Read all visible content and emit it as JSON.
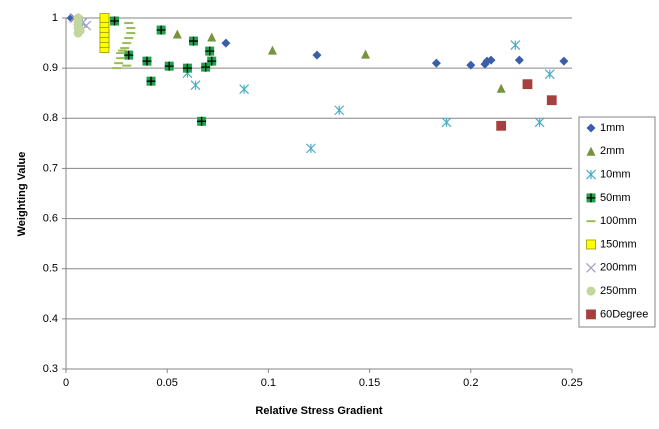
{
  "chart_data": {
    "type": "scatter",
    "x_label": "Relative Stress Gradient",
    "y_label": "Weighting Value",
    "xlim": [
      0,
      0.25
    ],
    "xticks": [
      0,
      0.05,
      0.1,
      0.15,
      0.2,
      0.25
    ],
    "ylim": [
      0.3,
      1
    ],
    "yticks": [
      0.3,
      0.4,
      0.5,
      0.6,
      0.7,
      0.8,
      0.9,
      1
    ],
    "grid": true,
    "legend": "right",
    "series": [
      {
        "name": "1mm",
        "color": "#3a5ea8",
        "marker": "diamond",
        "x": [
          0.0025,
          0.079,
          0.124,
          0.183,
          0.2,
          0.207,
          0.208,
          0.21,
          0.224,
          0.246
        ],
        "values": [
          1.0,
          0.95,
          0.926,
          0.91,
          0.906,
          0.908,
          0.914,
          0.916,
          0.916,
          0.914
        ]
      },
      {
        "name": "2mm",
        "color": "#77933c",
        "marker": "triangle",
        "x": [
          0.055,
          0.072,
          0.102,
          0.148,
          0.215
        ],
        "values": [
          0.968,
          0.962,
          0.936,
          0.928,
          0.86
        ]
      },
      {
        "name": "10mm",
        "color": "#4bacc6",
        "marker": "star",
        "x": [
          0.008,
          0.06,
          0.064,
          0.088,
          0.121,
          0.135,
          0.188,
          0.222,
          0.234,
          0.239
        ],
        "values": [
          0.99,
          0.89,
          0.866,
          0.858,
          0.74,
          0.816,
          0.792,
          0.946,
          0.792,
          0.888
        ]
      },
      {
        "name": "50mm",
        "color": "#22a04b",
        "marker": "plus-square",
        "x": [
          0.024,
          0.031,
          0.04,
          0.042,
          0.047,
          0.051,
          0.06,
          0.063,
          0.067,
          0.069,
          0.071,
          0.072
        ],
        "values": [
          0.994,
          0.926,
          0.914,
          0.874,
          0.976,
          0.904,
          0.9,
          0.954,
          0.794,
          0.902,
          0.934,
          0.914
        ]
      },
      {
        "name": "100mm",
        "color": "#9bbb59",
        "marker": "dash",
        "x": [
          0.025,
          0.026,
          0.027,
          0.027,
          0.028,
          0.029,
          0.03,
          0.031,
          0.032,
          0.032,
          0.031,
          0.03
        ],
        "values": [
          0.9,
          0.91,
          0.92,
          0.93,
          0.935,
          0.94,
          0.95,
          0.96,
          0.97,
          0.98,
          0.99,
          0.905
        ]
      },
      {
        "name": "150mm",
        "color": "#ffff00",
        "marker": "square",
        "x": [
          0.019,
          0.019,
          0.019,
          0.019,
          0.019,
          0.019,
          0.019
        ],
        "values": [
          0.94,
          0.95,
          0.96,
          0.97,
          0.98,
          0.99,
          1.0
        ]
      },
      {
        "name": "200mm",
        "color": "#a0a0c0",
        "marker": "x",
        "x": [
          0.004,
          0.006,
          0.008,
          0.01
        ],
        "values": [
          1.0,
          0.995,
          0.99,
          0.985
        ]
      },
      {
        "name": "250mm",
        "color": "#c3d69b",
        "marker": "circle",
        "x": [
          0.006,
          0.006,
          0.006,
          0.006,
          0.007
        ],
        "values": [
          1.0,
          0.99,
          0.98,
          0.97,
          0.975
        ]
      },
      {
        "name": "60Degree",
        "color": "#a5403e",
        "marker": "square",
        "x": [
          0.215,
          0.228,
          0.24
        ],
        "values": [
          0.785,
          0.868,
          0.836
        ]
      }
    ]
  }
}
